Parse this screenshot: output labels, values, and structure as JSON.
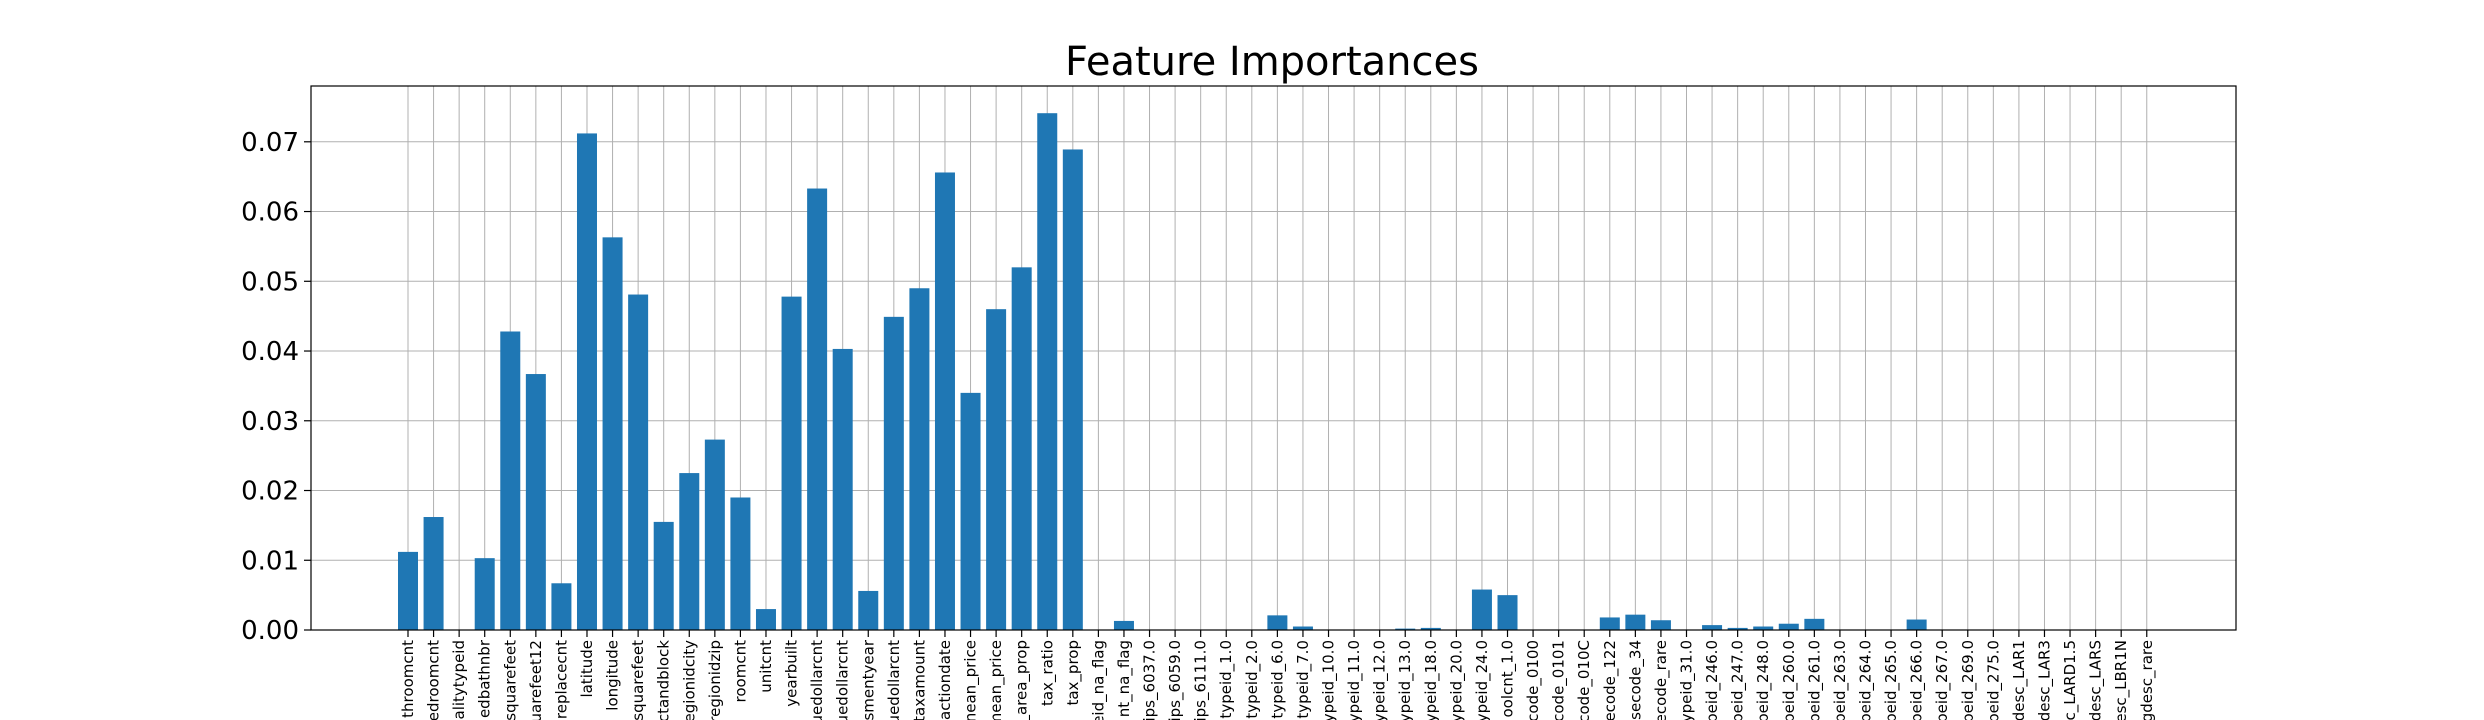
{
  "chart_data": {
    "type": "bar",
    "title": "Feature Importances",
    "xlabel": "",
    "ylabel": "",
    "ylim": [
      0,
      0.078
    ],
    "yticks": [
      "0.00",
      "0.01",
      "0.02",
      "0.03",
      "0.04",
      "0.05",
      "0.06",
      "0.07"
    ],
    "grid": true,
    "bar_color": "#1f77b4",
    "categories": [
      "throomcnt",
      "edroomcnt",
      "alitytypeid",
      "edbathnbr",
      "squarefeet",
      "uarefeet12",
      "replacecnt",
      "latitude",
      "longitude",
      "squarefeet",
      "ctandblock",
      "egionidcity",
      "regionidzip",
      "roomcnt",
      "unitcnt",
      "yearbuilt",
      "uedollarcnt",
      "uedollarcnt",
      "smentyear",
      "uedollarcnt",
      "taxamount",
      "actiondate",
      "nean_price",
      "mean_price",
      "_area_prop",
      "tax_ratio",
      "tax_prop",
      "eid_na_flag",
      "nt_na_flag",
      "ips_6037.0",
      "ips_6059.0",
      "ips_6111.0",
      "typeid_1.0",
      "typeid_2.0",
      "typeid_6.0",
      "typeid_7.0",
      "ypeid_10.0",
      "ypeid_11.0",
      "ypeid_12.0",
      "ypeid_13.0",
      "ypeid_18.0",
      "ypeid_20.0",
      "ypeid_24.0",
      "oolcnt_1.0",
      "code_0100",
      "code_0101",
      "code_010C",
      "ecode_122",
      "secode_34",
      "ecode_rare",
      "ypeid_31.0",
      "peid_246.0",
      "peid_247.0",
      "peid_248.0",
      "peid_260.0",
      "peid_261.0",
      "peid_263.0",
      "peid_264.0",
      "peid_265.0",
      "peid_266.0",
      "peid_267.0",
      "peid_269.0",
      "peid_275.0",
      "desc_LAR1",
      "desc_LAR3",
      "c_LARD1.5",
      "desc_LARS",
      "esc_LBR1N",
      "gdesc_rare"
    ],
    "values": [
      0.0112,
      0.0162,
      0.0,
      0.0103,
      0.0428,
      0.0367,
      0.0067,
      0.0712,
      0.0563,
      0.0481,
      0.0155,
      0.0225,
      0.0273,
      0.019,
      0.003,
      0.0478,
      0.0633,
      0.0403,
      0.0056,
      0.0449,
      0.049,
      0.0656,
      0.034,
      0.046,
      0.052,
      0.0741,
      0.0689,
      0.0,
      0.0013,
      0.0,
      0.0,
      0.0,
      0.0,
      0.0,
      0.0021,
      0.0005,
      0.0,
      0.0,
      0.0,
      0.0002,
      0.0003,
      0.0,
      0.0058,
      0.005,
      0.0,
      0.0,
      0.0,
      0.0018,
      0.0022,
      0.0014,
      0.0,
      0.0007,
      0.0003,
      0.0005,
      0.0009,
      0.0016,
      0.0,
      0.0,
      0.0,
      0.0015,
      0.0,
      0.0,
      0.0,
      0.0,
      0.0,
      0.0,
      0.0,
      0.0,
      0.0
    ]
  }
}
